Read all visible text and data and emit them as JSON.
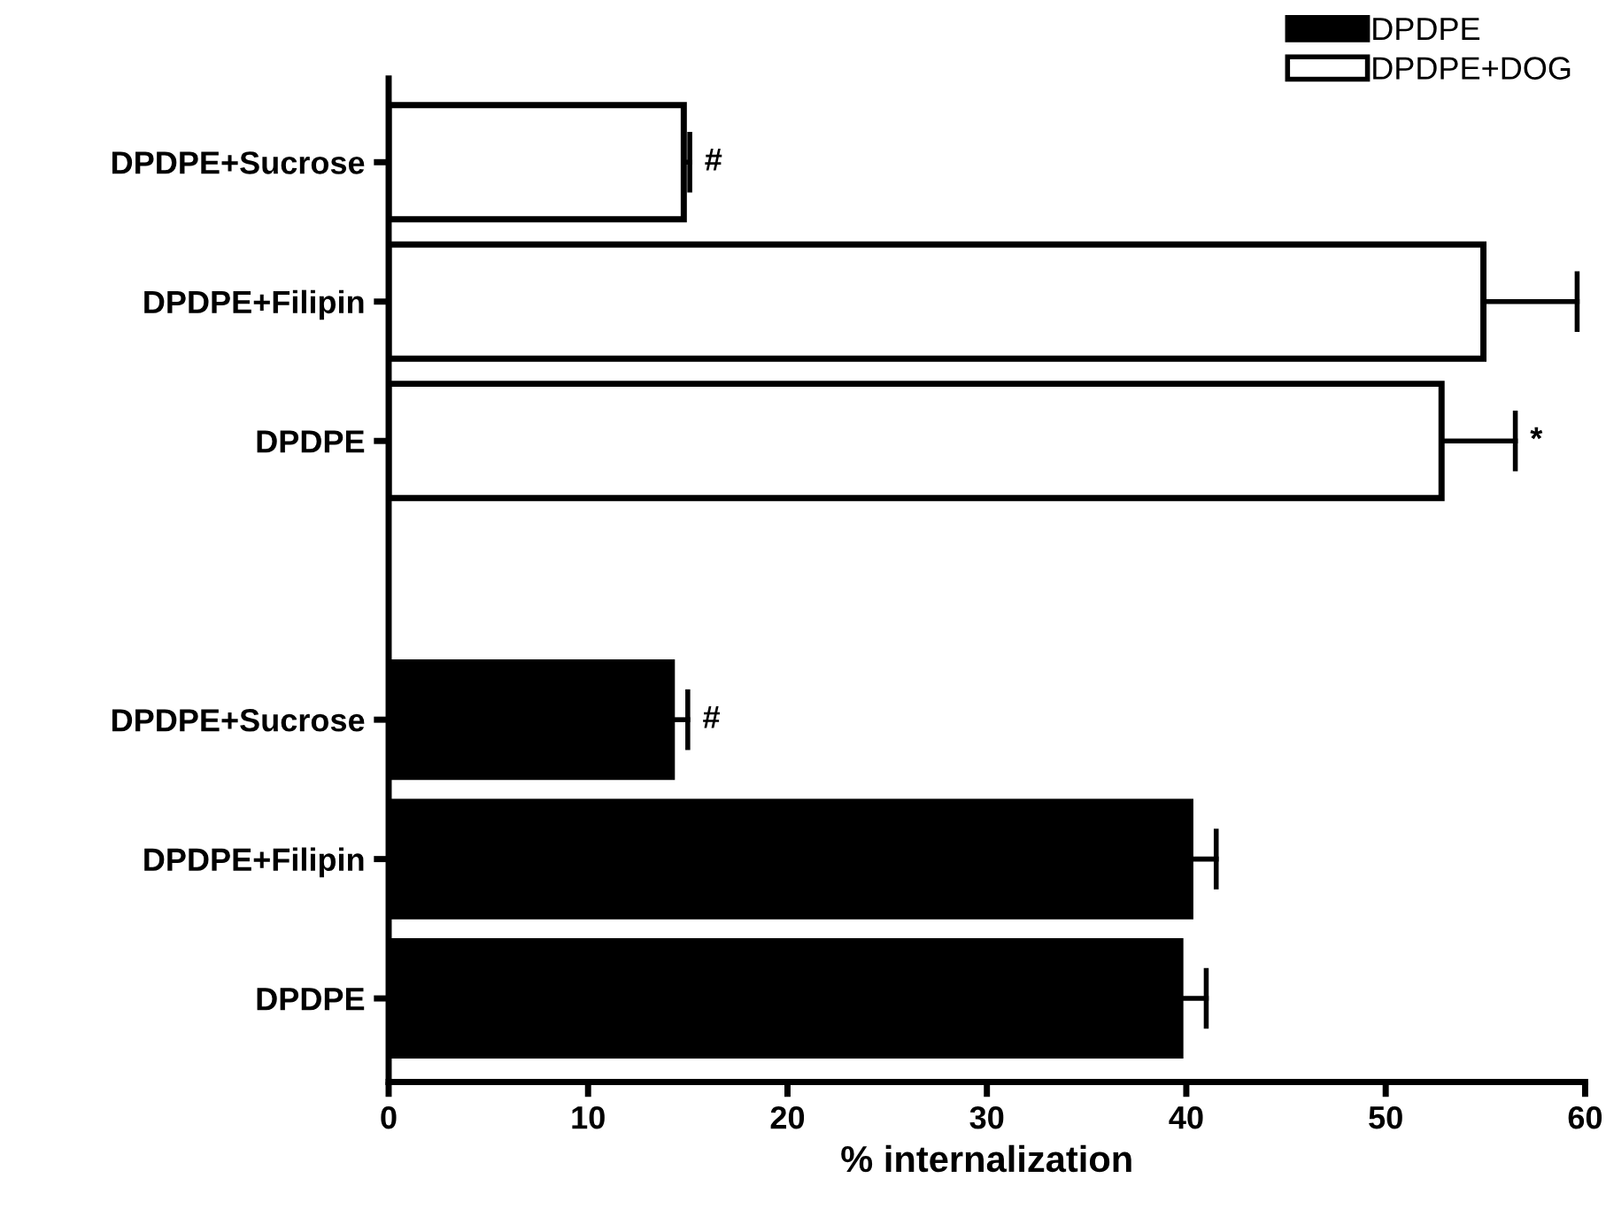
{
  "chart_data": {
    "type": "bar",
    "orientation": "horizontal",
    "xlabel": "% internalization",
    "categories": [
      "DPDPE+Sucrose",
      "DPDPE+Filipin",
      "DPDPE",
      null,
      "DPDPE+Sucrose",
      "DPDPE+Filipin",
      "DPDPE"
    ],
    "series": [
      {
        "name": "DPDPE",
        "color": "#000000",
        "values": [
          null,
          null,
          null,
          null,
          14.2,
          40.2,
          39.7
        ],
        "errors": [
          null,
          null,
          null,
          null,
          [
            14.2,
            15.0
          ],
          [
            40.2,
            41.5
          ],
          [
            39.7,
            41.0
          ]
        ],
        "value_labels": [
          null,
          null,
          null,
          null,
          "#",
          null,
          null
        ]
      },
      {
        "name": "DPDPE+DOG",
        "color": "#ffffff",
        "values": [
          14.8,
          54.9,
          52.8,
          null,
          null,
          null,
          null
        ],
        "errors": [
          [
            14.8,
            15.1
          ],
          [
            54.9,
            59.6
          ],
          [
            52.8,
            56.5
          ],
          null,
          null,
          null,
          null
        ],
        "value_labels": [
          "#",
          null,
          "*",
          null,
          null,
          null,
          null
        ]
      }
    ],
    "xlim": [
      0,
      60
    ],
    "xticks": [
      0,
      10,
      20,
      30,
      40,
      50,
      60
    ],
    "grid": false,
    "legend": "top right"
  }
}
